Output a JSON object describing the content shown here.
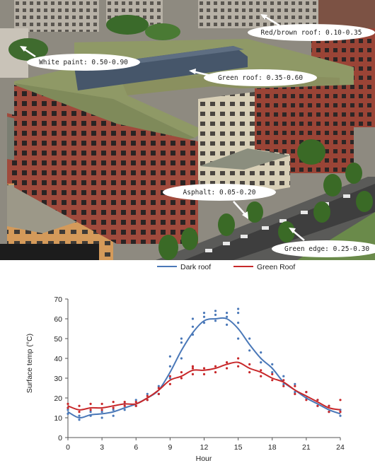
{
  "photo": {
    "annotations": [
      {
        "key": "red_brown_roof",
        "label": "Red/brown roof: 0.10-0.35"
      },
      {
        "key": "white_paint",
        "label": "White paint: 0.50-0.90"
      },
      {
        "key": "green_roof",
        "label": "Green roof: 0.35-0.60"
      },
      {
        "key": "asphalt",
        "label": "Asphalt: 0.05-0.20"
      },
      {
        "key": "green_edge",
        "label": "Green edge: 0.25-0.30"
      }
    ]
  },
  "chart_data": {
    "type": "line",
    "title": "",
    "xlabel": "Hour",
    "ylabel": "Surface temp (°C)",
    "xlim": [
      0,
      24
    ],
    "ylim": [
      0,
      70
    ],
    "xticks": [
      0,
      3,
      6,
      9,
      12,
      15,
      18,
      21,
      24
    ],
    "yticks": [
      0,
      10,
      20,
      30,
      40,
      50,
      60,
      70
    ],
    "grid": false,
    "legend_position": "top-center",
    "series": [
      {
        "name": "Dark roof",
        "color": "#4a78b8",
        "x": [
          0,
          1,
          2,
          3,
          4,
          5,
          6,
          7,
          8,
          9,
          10,
          11,
          12,
          13,
          14,
          15,
          16,
          17,
          18,
          19,
          20,
          21,
          22,
          23,
          24
        ],
        "y": [
          13,
          10,
          11.5,
          12,
          13,
          15,
          17,
          20,
          24,
          33,
          44,
          53,
          59,
          60,
          60,
          55,
          47,
          40,
          35,
          28,
          24,
          20,
          17,
          14,
          12
        ],
        "points": [
          [
            0,
            12
          ],
          [
            0,
            14
          ],
          [
            0,
            15
          ],
          [
            1,
            9
          ],
          [
            1,
            11
          ],
          [
            2,
            11
          ],
          [
            2,
            13
          ],
          [
            3,
            10
          ],
          [
            3,
            13
          ],
          [
            4,
            11
          ],
          [
            4,
            14
          ],
          [
            5,
            14
          ],
          [
            5,
            17
          ],
          [
            6,
            16
          ],
          [
            6,
            19
          ],
          [
            7,
            19
          ],
          [
            7,
            22
          ],
          [
            8,
            22
          ],
          [
            8,
            26
          ],
          [
            9,
            30
          ],
          [
            9,
            36
          ],
          [
            9,
            41
          ],
          [
            10,
            40
          ],
          [
            10,
            48
          ],
          [
            10,
            50
          ],
          [
            11,
            52
          ],
          [
            11,
            56
          ],
          [
            11,
            60
          ],
          [
            12,
            58
          ],
          [
            12,
            61
          ],
          [
            12,
            63
          ],
          [
            13,
            59
          ],
          [
            13,
            62
          ],
          [
            13,
            64
          ],
          [
            14,
            57
          ],
          [
            14,
            61
          ],
          [
            14,
            63
          ],
          [
            15,
            50
          ],
          [
            15,
            58
          ],
          [
            15,
            63
          ],
          [
            15,
            65
          ],
          [
            16,
            44
          ],
          [
            16,
            50
          ],
          [
            17,
            38
          ],
          [
            17,
            43
          ],
          [
            18,
            33
          ],
          [
            18,
            37
          ],
          [
            19,
            27
          ],
          [
            19,
            31
          ],
          [
            20,
            23
          ],
          [
            20,
            27
          ],
          [
            21,
            20
          ],
          [
            21,
            23
          ],
          [
            22,
            16
          ],
          [
            22,
            19
          ],
          [
            23,
            13
          ],
          [
            23,
            16
          ],
          [
            24,
            11
          ],
          [
            24,
            14
          ]
        ]
      },
      {
        "name": "Green Roof",
        "color": "#c8282a",
        "x": [
          0,
          1,
          2,
          3,
          4,
          5,
          6,
          7,
          8,
          9,
          10,
          11,
          12,
          13,
          14,
          15,
          16,
          17,
          18,
          19,
          20,
          21,
          22,
          23,
          24
        ],
        "y": [
          16,
          14,
          15,
          15,
          16,
          17,
          17,
          20,
          24,
          29,
          31,
          34,
          34,
          35,
          37,
          38,
          35,
          33,
          30,
          28,
          24,
          21,
          18,
          15,
          14
        ],
        "points": [
          [
            0,
            15
          ],
          [
            0,
            17
          ],
          [
            1,
            13
          ],
          [
            1,
            16
          ],
          [
            2,
            14
          ],
          [
            2,
            17
          ],
          [
            3,
            14
          ],
          [
            3,
            17
          ],
          [
            4,
            15
          ],
          [
            4,
            18
          ],
          [
            5,
            16
          ],
          [
            5,
            18
          ],
          [
            6,
            16
          ],
          [
            6,
            18
          ],
          [
            7,
            19
          ],
          [
            7,
            21
          ],
          [
            8,
            22
          ],
          [
            8,
            25
          ],
          [
            9,
            27
          ],
          [
            9,
            31
          ],
          [
            10,
            30
          ],
          [
            10,
            33
          ],
          [
            11,
            32
          ],
          [
            11,
            35
          ],
          [
            11,
            36
          ],
          [
            12,
            32
          ],
          [
            12,
            35
          ],
          [
            13,
            33
          ],
          [
            13,
            36
          ],
          [
            14,
            35
          ],
          [
            14,
            38
          ],
          [
            15,
            36
          ],
          [
            15,
            40
          ],
          [
            16,
            33
          ],
          [
            16,
            37
          ],
          [
            17,
            31
          ],
          [
            17,
            34
          ],
          [
            18,
            29
          ],
          [
            18,
            32
          ],
          [
            19,
            26
          ],
          [
            19,
            29
          ],
          [
            20,
            22
          ],
          [
            20,
            26
          ],
          [
            21,
            19
          ],
          [
            21,
            23
          ],
          [
            22,
            16
          ],
          [
            22,
            19
          ],
          [
            23,
            13
          ],
          [
            23,
            16
          ],
          [
            24,
            13
          ],
          [
            24,
            19
          ]
        ]
      }
    ]
  }
}
